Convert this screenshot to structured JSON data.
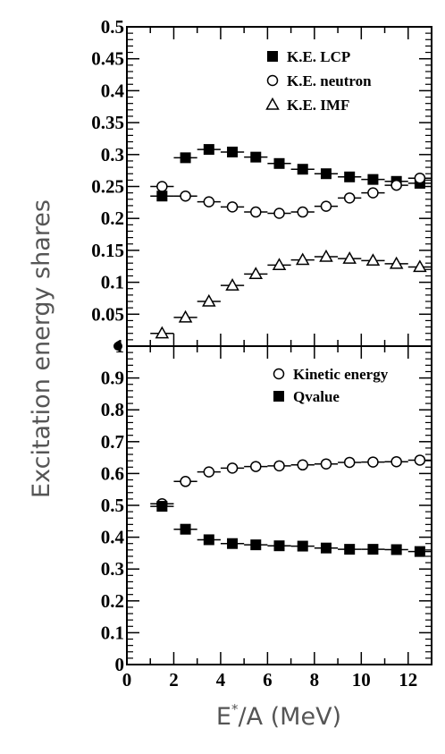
{
  "chart_data": [
    {
      "type": "scatter",
      "panel": "top",
      "xlim": [
        0,
        13
      ],
      "ylim": [
        0,
        0.5
      ],
      "y_ticks": [
        "0.05",
        "0.1",
        "0.15",
        "0.2",
        "0.25",
        "0.3",
        "0.35",
        "0.4",
        "0.45",
        "0.5"
      ],
      "series": [
        {
          "name": "K.E. LCP",
          "marker": "filled-square",
          "x": [
            1.5,
            2.5,
            3.5,
            4.5,
            5.5,
            6.5,
            7.5,
            8.5,
            9.5,
            10.5,
            11.5,
            12.5
          ],
          "values": [
            0.235,
            0.295,
            0.308,
            0.304,
            0.296,
            0.286,
            0.277,
            0.27,
            0.265,
            0.261,
            0.258,
            0.255
          ]
        },
        {
          "name": "K.E. neutron",
          "marker": "open-circle",
          "x": [
            1.5,
            2.5,
            3.5,
            4.5,
            5.5,
            6.5,
            7.5,
            8.5,
            9.5,
            10.5,
            11.5,
            12.5
          ],
          "values": [
            0.25,
            0.235,
            0.226,
            0.218,
            0.21,
            0.208,
            0.21,
            0.219,
            0.232,
            0.24,
            0.252,
            0.263
          ]
        },
        {
          "name": "K.E. IMF",
          "marker": "open-triangle",
          "x": [
            1.5,
            2.5,
            3.5,
            4.5,
            5.5,
            6.5,
            7.5,
            8.5,
            9.5,
            10.5,
            11.5,
            12.5
          ],
          "values": [
            0.02,
            0.045,
            0.07,
            0.095,
            0.113,
            0.127,
            0.135,
            0.14,
            0.137,
            0.134,
            0.129,
            0.124
          ]
        }
      ]
    },
    {
      "type": "scatter",
      "panel": "bottom",
      "xlim": [
        0,
        13
      ],
      "ylim": [
        0,
        1.0
      ],
      "y_ticks": [
        "0",
        "0.1",
        "0.2",
        "0.3",
        "0.4",
        "0.5",
        "0.6",
        "0.7",
        "0.8",
        "0.9",
        "1"
      ],
      "x_ticks": [
        "0",
        "2",
        "4",
        "6",
        "8",
        "10",
        "12"
      ],
      "series": [
        {
          "name": "Kinetic energy",
          "marker": "open-circle",
          "x": [
            1.5,
            2.5,
            3.5,
            4.5,
            5.5,
            6.5,
            7.5,
            8.5,
            9.5,
            10.5,
            11.5,
            12.5
          ],
          "values": [
            0.505,
            0.575,
            0.605,
            0.617,
            0.622,
            0.624,
            0.627,
            0.63,
            0.635,
            0.636,
            0.637,
            0.642
          ]
        },
        {
          "name": "Qvalue",
          "marker": "filled-square",
          "x": [
            1.5,
            2.5,
            3.5,
            4.5,
            5.5,
            6.5,
            7.5,
            8.5,
            9.5,
            10.5,
            11.5,
            12.5
          ],
          "values": [
            0.497,
            0.425,
            0.392,
            0.38,
            0.376,
            0.373,
            0.372,
            0.366,
            0.362,
            0.362,
            0.361,
            0.355
          ]
        }
      ]
    }
  ],
  "ylabel": "Excitation energy shares",
  "xlabel": "E*/A (MeV)"
}
